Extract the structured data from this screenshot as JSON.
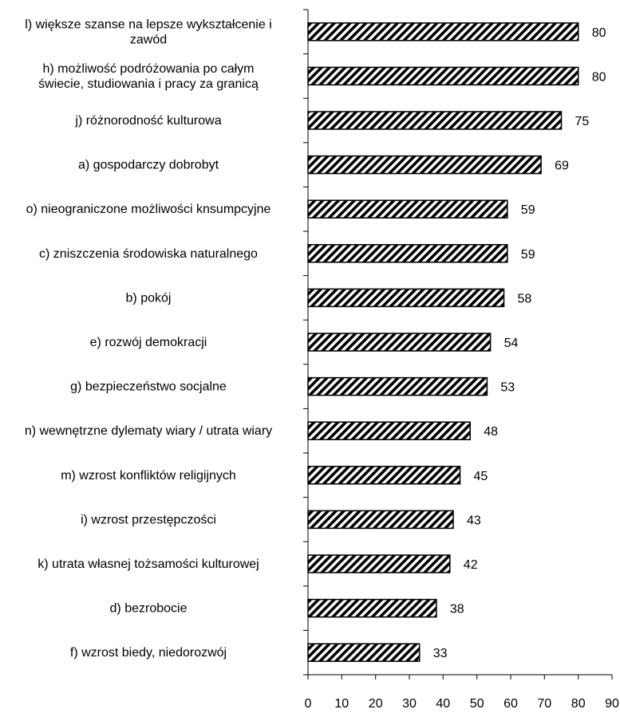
{
  "chart_data": {
    "type": "bar",
    "orientation": "horizontal",
    "title": "",
    "xlabel": "",
    "ylabel": "",
    "xlim": [
      0,
      90
    ],
    "x_ticks": [
      "0",
      "10",
      "20",
      "30",
      "40",
      "50",
      "60",
      "70",
      "80",
      "90"
    ],
    "grid": false,
    "legend": "none",
    "bar_fill": "diagonal-hatch",
    "bar_color": "#000000",
    "categories": [
      [
        "l) większe szanse na lepsze wykształcenie i",
        "zawód"
      ],
      [
        "h) możliwość podróżowania po całym",
        "świecie, studiowania i pracy za granicą"
      ],
      [
        "j) różnorodność kulturowa"
      ],
      [
        "a) gospodarczy dobrobyt"
      ],
      [
        "o) nieograniczone możliwości knsumpcyjne"
      ],
      [
        "c) zniszczenia środowiska naturalnego"
      ],
      [
        "b) pokój"
      ],
      [
        "e) rozwój demokracji"
      ],
      [
        "g) bezpieczeństwo socjalne"
      ],
      [
        "n) wewnętrzne dylematy wiary / utrata wiary"
      ],
      [
        "m) wzrost konfliktów religijnych"
      ],
      [
        "i) wzrost przestępczości"
      ],
      [
        "k) utrata własnej tożsamości kulturowej"
      ],
      [
        "d) bezrobocie"
      ],
      [
        "f) wzrost biedy, niedorozwój"
      ]
    ],
    "values": [
      80,
      80,
      75,
      69,
      59,
      59,
      58,
      54,
      53,
      48,
      45,
      43,
      42,
      38,
      33
    ]
  }
}
